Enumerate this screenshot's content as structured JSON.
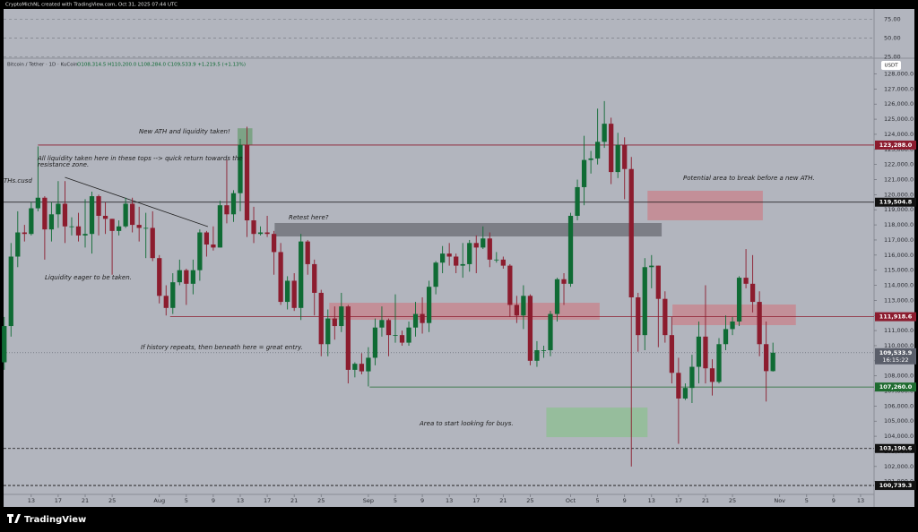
{
  "header": {
    "credit": "CryptoMichNL created with TradingView.com, Oct 31, 2025 07:44 UTC",
    "symbol": "Bitcoin / Tether · 1D · KuCoin",
    "ohlc": "O108,314.5 H110,200.0 L108,284.0 C109,533.9 +1,219.5 (+1.13%)",
    "currency": "USDT",
    "brand": "TradingView"
  },
  "annotations": [
    "New ATH and liquidity taken!",
    "All liquidity taken here in these tops --> quick return towards the",
    "resistance zone.",
    "THs.cusd",
    "Retest here?",
    "Potential area to break before a new ATH.",
    "Liquidity eager to be taken.",
    "If history repeats, then beneath here = great entry.",
    "Area to start looking for buys."
  ],
  "chart_data": {
    "type": "candlestick",
    "up_color": "#0f6b34",
    "down_color": "#8c1c2e",
    "opens": [
      108900,
      111300,
      115900,
      117500,
      117400,
      119100,
      119800,
      117700,
      118700,
      119400,
      117900,
      117900,
      117300,
      117400,
      119900,
      118600,
      118400,
      117600,
      117900,
      119400,
      118000,
      117800,
      117800,
      115800,
      113300,
      112500,
      114200,
      115000,
      114100,
      115000,
      117500,
      116700,
      116500,
      119300,
      118700,
      120100,
      123300,
      118300,
      117400,
      117500,
      117400,
      116200,
      112900,
      114300,
      112500,
      116900,
      115400,
      113500,
      110100,
      111800,
      111300,
      112600,
      108400,
      108800,
      108300,
      109200,
      111200,
      111700,
      110700,
      110700,
      110200,
      111200,
      112100,
      111500,
      113900,
      115500,
      116100,
      115900,
      115300,
      115400,
      116800,
      116500,
      117100,
      115700,
      115700,
      115300,
      112700,
      112000,
      113300,
      109000,
      109700,
      109700,
      112100,
      114400,
      114100,
      118600,
      120500,
      122300,
      122400,
      123500,
      124700,
      121500,
      123300,
      121700,
      113200,
      110700,
      115200,
      115300,
      113100,
      110700,
      108200,
      106500,
      107200,
      108600,
      110600,
      108500,
      107600,
      110100,
      111100,
      111600,
      114500,
      114100,
      112900,
      110100,
      108314.5
    ],
    "highs": [
      111900,
      116800,
      118900,
      118000,
      119500,
      123200,
      119900,
      119500,
      120900,
      120900,
      118500,
      118800,
      119700,
      120200,
      120000,
      119500,
      118400,
      118300,
      119800,
      119800,
      119200,
      118800,
      118900,
      116000,
      114000,
      114800,
      115700,
      115100,
      115700,
      117700,
      117600,
      117900,
      119600,
      122300,
      120300,
      123700,
      124500,
      119200,
      117900,
      118600,
      117600,
      116800,
      114600,
      114800,
      117400,
      117000,
      115700,
      113700,
      112400,
      112600,
      113500,
      112700,
      108900,
      109500,
      109900,
      111800,
      112600,
      111800,
      113400,
      111000,
      111600,
      112900,
      113200,
      114300,
      115600,
      116600,
      116800,
      116100,
      116800,
      117000,
      117300,
      117900,
      117500,
      116200,
      115900,
      115400,
      113300,
      114000,
      113400,
      110300,
      110000,
      112300,
      114500,
      114800,
      118800,
      121000,
      123900,
      122900,
      125700,
      126200,
      125100,
      124100,
      123800,
      122500,
      113500,
      115800,
      116000,
      115300,
      113600,
      111900,
      109200,
      107500,
      109400,
      111600,
      114000,
      109100,
      110500,
      112000,
      111900,
      114600,
      116400,
      116000,
      113600,
      111600,
      110200
    ],
    "lows": [
      108400,
      110600,
      115200,
      116900,
      117300,
      118900,
      115700,
      116900,
      117800,
      116800,
      117300,
      116900,
      116500,
      116100,
      117300,
      117400,
      114700,
      117300,
      117800,
      117500,
      116900,
      115800,
      115600,
      112800,
      112000,
      112100,
      114000,
      112700,
      113400,
      114300,
      115900,
      116300,
      116500,
      118100,
      118200,
      118900,
      117200,
      116800,
      117300,
      117200,
      114700,
      112700,
      112400,
      112300,
      111700,
      114700,
      112000,
      109300,
      109300,
      110400,
      110900,
      107500,
      107900,
      108100,
      107300,
      108700,
      110600,
      109300,
      110200,
      110000,
      110000,
      110600,
      110800,
      110900,
      113400,
      114800,
      115300,
      114800,
      114500,
      114900,
      114800,
      116400,
      115200,
      115500,
      115100,
      111900,
      111500,
      111100,
      108700,
      108600,
      109200,
      109300,
      111600,
      112700,
      113900,
      118300,
      119300,
      121400,
      122000,
      123100,
      120700,
      121100,
      119700,
      102000,
      109600,
      109700,
      113800,
      109900,
      110200,
      107500,
      103500,
      106400,
      106200,
      107500,
      107500,
      106700,
      107500,
      109700,
      110700,
      111300,
      113800,
      112200,
      109300,
      106300,
      108284
    ],
    "closes": [
      111300,
      115900,
      117500,
      117400,
      119100,
      119800,
      117700,
      118700,
      119400,
      117900,
      117900,
      117300,
      117400,
      119900,
      118600,
      118400,
      117600,
      117900,
      119400,
      118000,
      117800,
      117800,
      115800,
      113300,
      112500,
      114200,
      115000,
      114100,
      115000,
      117500,
      116700,
      116500,
      119300,
      118700,
      120100,
      123300,
      118300,
      117400,
      117500,
      117400,
      116200,
      112900,
      114300,
      112500,
      116900,
      115400,
      113500,
      110100,
      111800,
      111300,
      112600,
      108400,
      108800,
      108300,
      109200,
      111200,
      111700,
      110700,
      110700,
      110200,
      111200,
      112100,
      111500,
      113900,
      115500,
      116100,
      115900,
      115300,
      115400,
      116800,
      116500,
      117100,
      115700,
      115700,
      115300,
      112700,
      112000,
      113300,
      109000,
      109700,
      109700,
      112100,
      114400,
      114100,
      118600,
      120500,
      122300,
      122400,
      123500,
      124700,
      121500,
      123300,
      121700,
      113200,
      110700,
      115200,
      115300,
      113100,
      110700,
      108200,
      106500,
      107200,
      108600,
      110600,
      108500,
      107600,
      110100,
      111100,
      111600,
      114500,
      114100,
      112900,
      110100,
      108314.5,
      109533.9
    ],
    "xlim": [
      -0.1,
      129
    ],
    "xticks": [
      {
        "value": 4,
        "label": "13"
      },
      {
        "value": 8,
        "label": "17"
      },
      {
        "value": 12,
        "label": "21"
      },
      {
        "value": 16,
        "label": "25"
      },
      {
        "value": 23,
        "label": "Aug"
      },
      {
        "value": 27,
        "label": "5"
      },
      {
        "value": 31,
        "label": "9"
      },
      {
        "value": 35,
        "label": "13"
      },
      {
        "value": 39,
        "label": "17"
      },
      {
        "value": 43,
        "label": "21"
      },
      {
        "value": 47,
        "label": "25"
      },
      {
        "value": 54,
        "label": "Sep"
      },
      {
        "value": 58,
        "label": "5"
      },
      {
        "value": 62,
        "label": "9"
      },
      {
        "value": 66,
        "label": "13"
      },
      {
        "value": 70,
        "label": "17"
      },
      {
        "value": 74,
        "label": "21"
      },
      {
        "value": 78,
        "label": "25"
      },
      {
        "value": 84,
        "label": "Oct"
      },
      {
        "value": 88,
        "label": "5"
      },
      {
        "value": 92,
        "label": "9"
      },
      {
        "value": 96,
        "label": "13"
      },
      {
        "value": 100,
        "label": "17"
      },
      {
        "value": 104,
        "label": "21"
      },
      {
        "value": 108,
        "label": "25"
      },
      {
        "value": 115,
        "label": "Nov"
      },
      {
        "value": 119,
        "label": "5"
      },
      {
        "value": 123,
        "label": "9"
      },
      {
        "value": 127,
        "label": "13"
      }
    ],
    "ylim": [
      100150,
      128980
    ],
    "yticks": [
      {
        "value": 101000,
        "label": "101,000.0"
      },
      {
        "value": 102000,
        "label": "102,000.0"
      },
      {
        "value": 103000,
        "label": "103,000.0"
      },
      {
        "value": 104000,
        "label": "104,000.0"
      },
      {
        "value": 105000,
        "label": "105,000.0"
      },
      {
        "value": 106000,
        "label": "106,000.0"
      },
      {
        "value": 107000,
        "label": "107,000.0"
      },
      {
        "value": 108000,
        "label": "108,000.0"
      },
      {
        "value": 109000,
        "label": "109,000.0"
      },
      {
        "value": 110000,
        "label": "110,000.0"
      },
      {
        "value": 111000,
        "label": "111,000.0"
      },
      {
        "value": 112000,
        "label": "112,000.0"
      },
      {
        "value": 113000,
        "label": "113,000.0"
      },
      {
        "value": 114000,
        "label": "114,000.0"
      },
      {
        "value": 115000,
        "label": "115,000.0"
      },
      {
        "value": 116000,
        "label": "116,000.0"
      },
      {
        "value": 117000,
        "label": "117,000.0"
      },
      {
        "value": 118000,
        "label": "118,000.0"
      },
      {
        "value": 119000,
        "label": "119,000.0"
      },
      {
        "value": 120000,
        "label": "120,000.0"
      },
      {
        "value": 121000,
        "label": "121,000.0"
      },
      {
        "value": 122000,
        "label": "122,000.0"
      },
      {
        "value": 123000,
        "label": "123,000.0"
      },
      {
        "value": 124000,
        "label": "124,000.0"
      },
      {
        "value": 125000,
        "label": "125,000.0"
      },
      {
        "value": 126000,
        "label": "126,000.0"
      },
      {
        "value": 127000,
        "label": "127,000.0"
      },
      {
        "value": 128000,
        "label": "128,000.0"
      }
    ],
    "levels": [
      {
        "value": 123288,
        "label": "123,288.0",
        "color": "#8c1c2e",
        "start": 5
      },
      {
        "value": 119504.8,
        "label": "119,504.8",
        "color": "#111111"
      },
      {
        "value": 111918.6,
        "label": "111,918.6",
        "color": "#8c1c2e",
        "start": 24.6
      },
      {
        "value": 107260,
        "label": "107,260.0",
        "color": "#1e6b2f",
        "start": 54.2
      },
      {
        "value": 103190.6,
        "label": "103,190.6",
        "color": "#111111",
        "style": "dashed"
      },
      {
        "value": 100739.3,
        "label": "100,739.3",
        "color": "#111111",
        "style": "dashed"
      }
    ],
    "last_price": {
      "value": 109533.9,
      "label": "109,533.9",
      "countdown": "16:15:22",
      "color": "#5a5e6a"
    },
    "zones": [
      {
        "start": 34.6,
        "end": 36.8,
        "low": 123300,
        "high": 124400,
        "color": "#6f9f78"
      },
      {
        "start": 40.1,
        "end": 97.5,
        "low": 117235,
        "high": 118125,
        "color": "#6e7078"
      },
      {
        "start": 95.4,
        "end": 112.5,
        "low": 118303,
        "high": 120261,
        "color": "#c7868f"
      },
      {
        "start": 48.2,
        "end": 88.3,
        "low": 111715,
        "high": 112843,
        "color": "#c7868f"
      },
      {
        "start": 99.1,
        "end": 117.4,
        "low": 111360,
        "high": 112725,
        "color": "#c7868f"
      },
      {
        "start": 80.4,
        "end": 95.4,
        "low": 103940,
        "high": 105900,
        "color": "#8fbf94"
      }
    ],
    "trendline": {
      "x": [
        9,
        30.2
      ],
      "values": [
        121150,
        117890
      ]
    },
    "rsi": {
      "ylim": [
        23,
        89
      ],
      "yticks": [
        {
          "value": 75,
          "label": "75.00"
        },
        {
          "value": 50,
          "label": "50.00"
        },
        {
          "value": 25,
          "label": "25.00"
        }
      ]
    }
  }
}
